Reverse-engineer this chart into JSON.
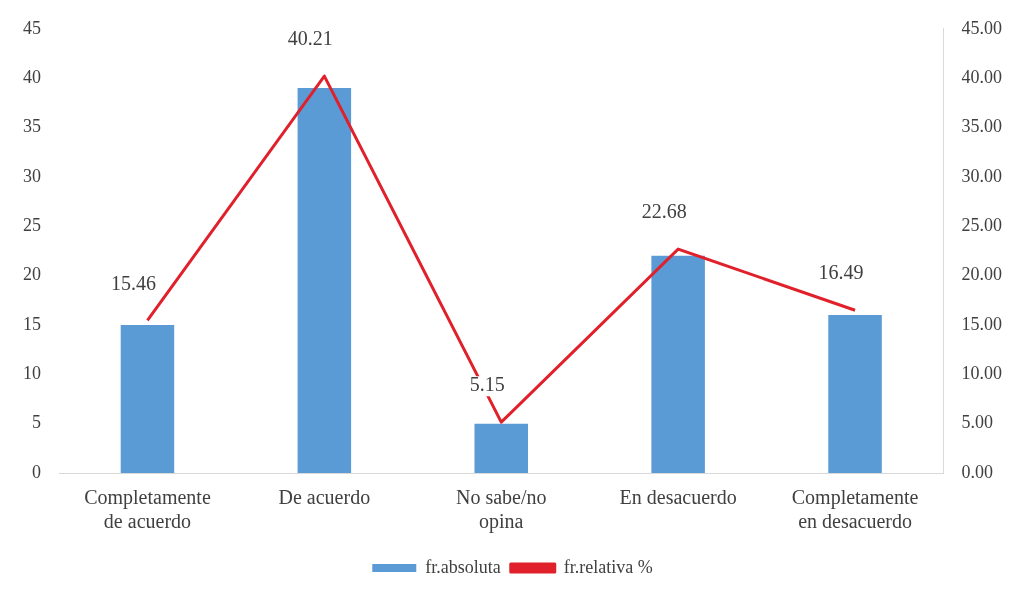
{
  "chart_data": {
    "type": "bar",
    "categories": [
      "Completamente de acuerdo",
      "De acuerdo",
      "No sabe/no opina",
      "En desacuerdo",
      "Completamente en desacuerdo"
    ],
    "series": [
      {
        "name": "fr.absoluta",
        "color": "#5b9bd5",
        "values": [
          15,
          39,
          5,
          22,
          16
        ]
      },
      {
        "name": "fr.relativa %",
        "type": "line",
        "axis": "y2",
        "color": "#e0202a",
        "marker": "none",
        "values": [
          15.46,
          40.21,
          5.15,
          22.68,
          16.49
        ],
        "value_labels": [
          "15.46",
          "40.21",
          "5.15",
          "22.68",
          "16.49"
        ]
      }
    ],
    "ylim": [
      0,
      45
    ],
    "yticks": [
      0,
      5,
      10,
      15,
      20,
      25,
      30,
      35,
      40,
      45
    ],
    "y2lim": [
      0,
      45
    ],
    "y2ticks": [
      {
        "value": 0,
        "label": "0.00"
      },
      {
        "value": 5,
        "label": "5.00"
      },
      {
        "value": 10,
        "label": "10.00"
      },
      {
        "value": 15,
        "label": "15.00"
      },
      {
        "value": 20,
        "label": "20.00"
      },
      {
        "value": 25,
        "label": "25.00"
      },
      {
        "value": 30,
        "label": "30.00"
      },
      {
        "value": 35,
        "label": "35.00"
      },
      {
        "value": 40,
        "label": "40.00"
      },
      {
        "value": 45,
        "label": "45.00"
      }
    ],
    "grid": false,
    "legend": "bottom"
  }
}
